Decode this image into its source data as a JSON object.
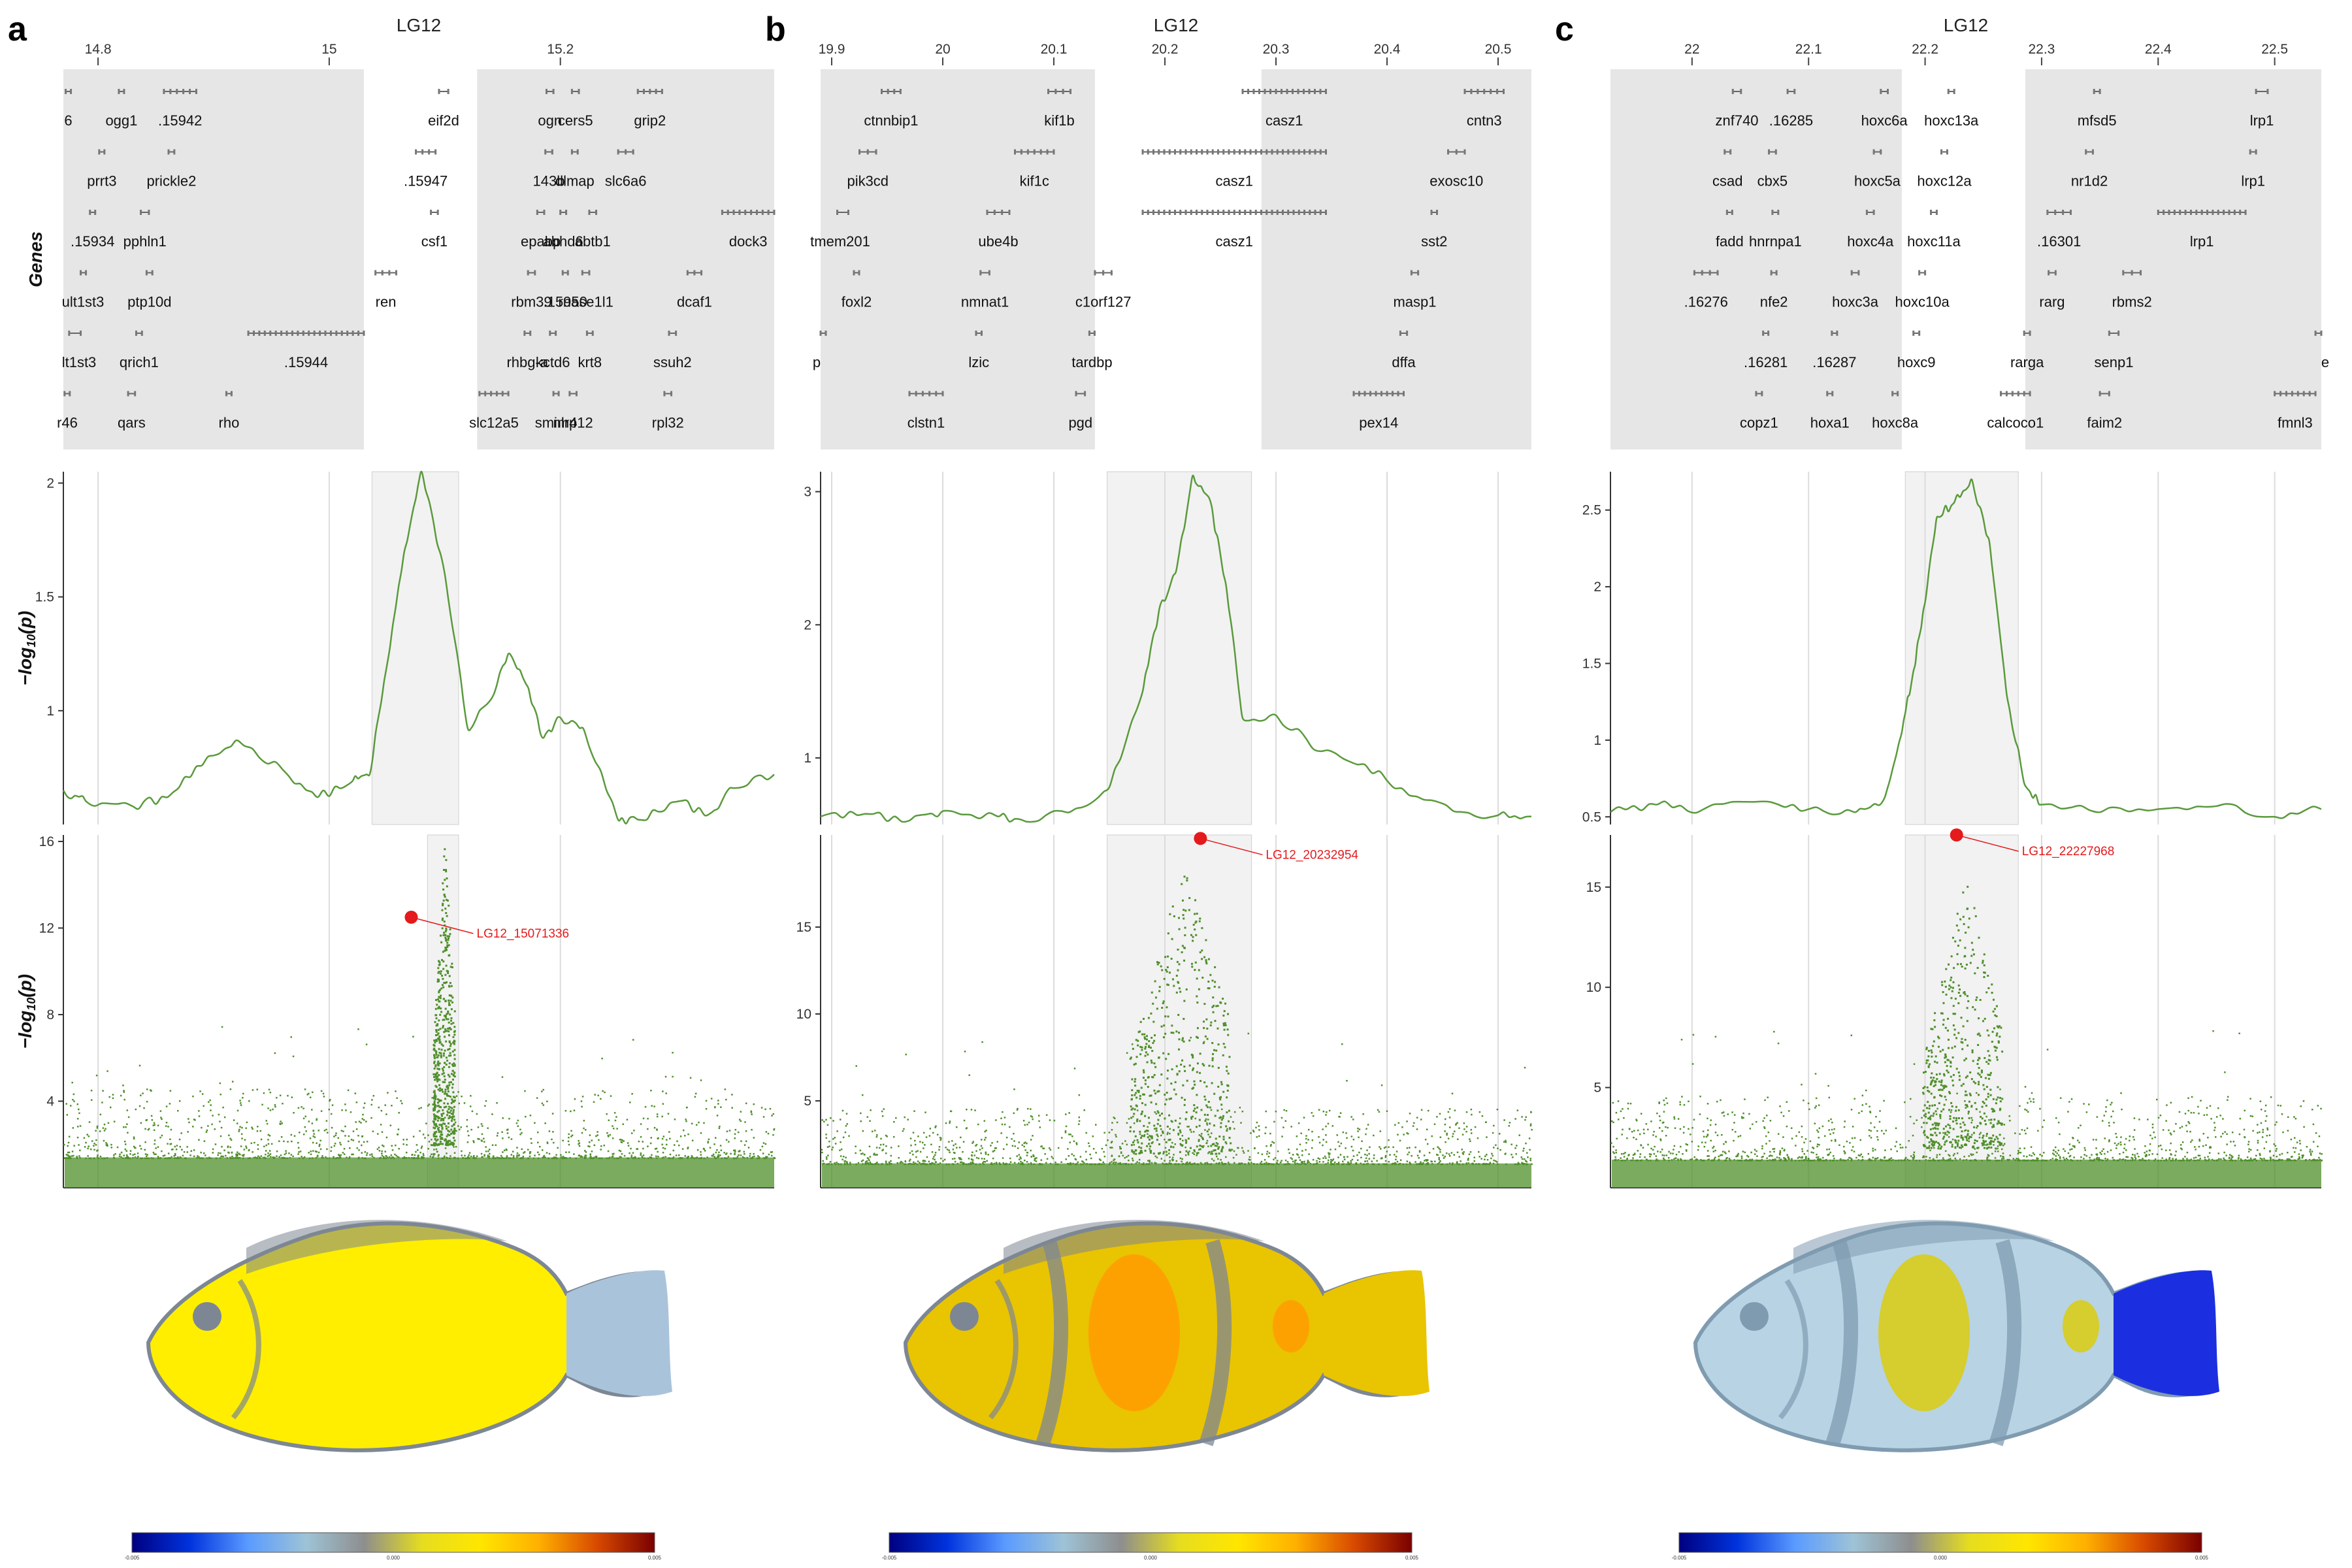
{
  "panels": [
    {
      "label": "a",
      "chrom": "LG12",
      "xlim": [
        14.77,
        15.385
      ],
      "xticks": [
        14.8,
        15.0,
        15.2
      ],
      "xtick_labels": [
        "14.8",
        "15",
        "15.2"
      ],
      "gene_ylabel": "Genes",
      "genes": [
        [
          [
            "6",
            14.772,
            14.772
          ],
          [
            "ogg1",
            14.818,
            14.822
          ],
          [
            ".15942",
            14.857,
            14.885
          ],
          [
            "eif2d",
            15.095,
            15.103
          ],
          [
            "ogn",
            15.188,
            15.194
          ],
          [
            "cers5",
            15.21,
            15.216
          ],
          [
            "grip2",
            15.267,
            15.288
          ]
        ],
        [
          [
            "prrt3",
            14.801,
            14.805
          ],
          [
            "prickle2",
            14.861,
            14.866
          ],
          [
            ".15947",
            15.075,
            15.092
          ],
          [
            "143b",
            15.187,
            15.193
          ],
          [
            "dlmap",
            15.21,
            15.215
          ],
          [
            "slc6a6",
            15.25,
            15.263
          ]
        ],
        [
          [
            ".15934",
            14.793,
            14.797
          ],
          [
            "pphln1",
            14.837,
            14.844
          ],
          [
            "csf1",
            15.088,
            15.094
          ],
          [
            "epabp",
            15.18,
            15.186
          ],
          [
            "abhd6",
            15.2,
            15.205
          ],
          [
            "abtb1",
            15.225,
            15.231
          ],
          [
            "dock3",
            15.34,
            15.385
          ]
        ],
        [
          [
            "ult1st3",
            14.785,
            14.789
          ],
          [
            "ptp10d",
            14.842,
            14.847
          ],
          [
            "ren",
            15.04,
            15.058
          ],
          [
            "rbm39",
            15.172,
            15.178
          ],
          [
            ".15950",
            15.202,
            15.206
          ],
          [
            "rnase1l1",
            15.219,
            15.225
          ],
          [
            "dcaf1",
            15.31,
            15.322
          ]
        ],
        [
          [
            "lt1st3",
            14.775,
            14.785
          ],
          [
            "qrich1",
            14.833,
            14.838
          ],
          [
            ".15944",
            14.93,
            15.03
          ],
          [
            "rhbg-a",
            15.169,
            15.174
          ],
          [
            "kctd6",
            15.191,
            15.196
          ],
          [
            "krt8",
            15.223,
            15.228
          ],
          [
            "ssuh2",
            15.294,
            15.3
          ]
        ],
        [
          [
            "r46",
            14.771,
            14.775
          ],
          [
            "qars",
            14.826,
            14.832
          ],
          [
            "rho",
            14.911,
            14.914
          ],
          [
            "slc12a5",
            15.13,
            15.155
          ],
          [
            "smim4",
            15.194,
            15.198
          ],
          [
            "nlrp12",
            15.208,
            15.214
          ],
          [
            "rpl32",
            15.29,
            15.296
          ]
        ]
      ],
      "gene_bands": [
        [
          14.77,
          15.03
        ],
        [
          15.128,
          15.385
        ]
      ],
      "line_ylabel": "-log10(p)",
      "line_yticks": [
        1.0,
        1.5,
        2.0
      ],
      "line_ylim": [
        0.5,
        2.05
      ],
      "line_knots": [
        [
          14.77,
          0.65
        ],
        [
          14.79,
          0.6
        ],
        [
          14.83,
          0.58
        ],
        [
          14.86,
          0.62
        ],
        [
          14.89,
          0.76
        ],
        [
          14.92,
          0.87
        ],
        [
          14.96,
          0.74
        ],
        [
          14.99,
          0.62
        ],
        [
          15.02,
          0.69
        ],
        [
          15.035,
          0.72
        ],
        [
          15.05,
          1.2
        ],
        [
          15.065,
          1.7
        ],
        [
          15.08,
          2.05
        ],
        [
          15.1,
          1.6
        ],
        [
          15.12,
          0.92
        ],
        [
          15.14,
          1.05
        ],
        [
          15.155,
          1.25
        ],
        [
          15.17,
          1.12
        ],
        [
          15.185,
          0.88
        ],
        [
          15.2,
          0.97
        ],
        [
          15.22,
          0.92
        ],
        [
          15.25,
          0.52
        ],
        [
          15.27,
          0.52
        ],
        [
          15.3,
          0.6
        ],
        [
          15.33,
          0.55
        ],
        [
          15.35,
          0.66
        ],
        [
          15.385,
          0.72
        ]
      ],
      "line_shade": [
        15.037,
        15.112
      ],
      "scatter_ylabel": "-log10(p)",
      "scatter_yticks": [
        4,
        8,
        12,
        16
      ],
      "scatter_ylim": [
        0,
        16.3
      ],
      "scatter_peak": [
        15.085,
        15.112
      ],
      "scatter_peak_max": 16.2,
      "top_snp": {
        "label": "LG12_15071336",
        "x": 15.071,
        "y": 12.5
      },
      "colorbar_ticks": [
        "-0.005",
        "0.000",
        "0.005"
      ]
    },
    {
      "label": "b",
      "chrom": "LG12",
      "xlim": [
        19.89,
        20.53
      ],
      "xticks": [
        19.9,
        20.0,
        20.1,
        20.2,
        20.3,
        20.4,
        20.5
      ],
      "xtick_labels": [
        "19.9",
        "20",
        "20.1",
        "20.2",
        "20.3",
        "20.4",
        "20.5"
      ],
      "gene_ylabel": "",
      "genes": [
        [
          [
            "ctnnbip1",
            19.945,
            19.962
          ],
          [
            "kif1b",
            20.095,
            20.115
          ],
          [
            "casz1",
            20.27,
            20.345
          ],
          [
            "cntn3",
            20.47,
            20.505
          ]
        ],
        [
          [
            "pik3cd",
            19.925,
            19.94
          ],
          [
            "kif1c",
            20.065,
            20.1
          ],
          [
            "casz1",
            20.18,
            20.345
          ],
          [
            "exosc10",
            20.455,
            20.47
          ]
        ],
        [
          [
            "tmem201",
            19.905,
            19.915
          ],
          [
            "ube4b",
            20.04,
            20.06
          ],
          [
            "casz1",
            20.18,
            20.345
          ],
          [
            "sst2",
            20.44,
            20.445
          ]
        ],
        [
          [
            "foxl2",
            19.92,
            19.924
          ],
          [
            "nmnat1",
            20.034,
            20.042
          ],
          [
            "c1orf127",
            20.137,
            20.152
          ],
          [
            "masp1",
            20.422,
            20.428
          ]
        ],
        [
          [
            "p",
            19.89,
            19.893
          ],
          [
            "lzic",
            20.03,
            20.035
          ],
          [
            "tardbp",
            20.132,
            20.136
          ],
          [
            "dffa",
            20.412,
            20.418
          ]
        ],
        [
          [
            "clstn1",
            19.97,
            20.0
          ],
          [
            "pgd",
            20.12,
            20.128
          ],
          [
            "pex14",
            20.37,
            20.415
          ]
        ]
      ],
      "gene_bands": [
        [
          19.89,
          20.137
        ],
        [
          20.287,
          20.53
        ]
      ],
      "line_ylabel": "",
      "line_yticks": [
        1,
        2,
        3
      ],
      "line_ylim": [
        0.5,
        3.15
      ],
      "line_knots": [
        [
          19.89,
          0.56
        ],
        [
          19.93,
          0.58
        ],
        [
          19.97,
          0.53
        ],
        [
          20.0,
          0.6
        ],
        [
          20.05,
          0.56
        ],
        [
          20.08,
          0.52
        ],
        [
          20.12,
          0.62
        ],
        [
          20.15,
          0.78
        ],
        [
          20.18,
          1.5
        ],
        [
          20.195,
          2.12
        ],
        [
          20.21,
          2.4
        ],
        [
          20.225,
          3.12
        ],
        [
          20.24,
          2.95
        ],
        [
          20.255,
          2.3
        ],
        [
          20.27,
          1.3
        ],
        [
          20.3,
          1.32
        ],
        [
          20.34,
          1.05
        ],
        [
          20.38,
          0.95
        ],
        [
          20.42,
          0.72
        ],
        [
          20.46,
          0.6
        ],
        [
          20.5,
          0.57
        ],
        [
          20.53,
          0.56
        ]
      ],
      "line_shade": [
        20.148,
        20.278
      ],
      "scatter_ylabel": "",
      "scatter_yticks": [
        5,
        10,
        15
      ],
      "scatter_ylim": [
        0,
        20.3
      ],
      "scatter_peak": [
        20.148,
        20.278
      ],
      "scatter_peak_max": 19.0,
      "top_snp": {
        "label": "LG12_20232954",
        "x": 20.232,
        "y": 20.1
      },
      "colorbar_ticks": [
        "-0.005",
        "0.000",
        "0.005"
      ]
    },
    {
      "label": "c",
      "chrom": "LG12",
      "xlim": [
        21.93,
        22.54
      ],
      "xticks": [
        22.0,
        22.1,
        22.2,
        22.3,
        22.4,
        22.5
      ],
      "xtick_labels": [
        "22",
        "22.1",
        "22.2",
        "22.3",
        "22.4",
        "22.5"
      ],
      "gene_ylabel": "",
      "genes": [
        [
          [
            "znf740",
            22.035,
            22.042
          ],
          [
            ".16285",
            22.082,
            22.088
          ],
          [
            "hoxc6a",
            22.162,
            22.168
          ],
          [
            "hoxc13a",
            22.22,
            22.225
          ],
          [
            "mfsd5",
            22.345,
            22.35
          ],
          [
            "lrp1",
            22.484,
            22.494
          ]
        ],
        [
          [
            "csad",
            22.028,
            22.033
          ],
          [
            "cbx5",
            22.066,
            22.072
          ],
          [
            "hoxc5a",
            22.156,
            22.162
          ],
          [
            "hoxc12a",
            22.214,
            22.219
          ],
          [
            "nr1d2",
            22.338,
            22.344
          ],
          [
            "lrp1",
            22.479,
            22.484
          ]
        ],
        [
          [
            "fadd",
            22.03,
            22.034
          ],
          [
            "hnrnpa1",
            22.069,
            22.074
          ],
          [
            "hoxc4a",
            22.15,
            22.156
          ],
          [
            "hoxc11a",
            22.205,
            22.21
          ],
          [
            ".16301",
            22.305,
            22.325
          ],
          [
            "lrp1",
            22.4,
            22.475
          ]
        ],
        [
          [
            ".16276",
            22.002,
            22.022
          ],
          [
            "nfe2",
            22.068,
            22.072
          ],
          [
            "hoxc3a",
            22.137,
            22.143
          ],
          [
            "hoxc10a",
            22.195,
            22.2
          ],
          [
            "rarg",
            22.306,
            22.312
          ],
          [
            "rbms2",
            22.37,
            22.385
          ]
        ],
        [
          [
            ".16281",
            22.061,
            22.064
          ],
          [
            ".16287",
            22.12,
            22.123
          ],
          [
            "hoxc9",
            22.19,
            22.195
          ],
          [
            "rarga",
            22.285,
            22.29
          ],
          [
            "senp1",
            22.358,
            22.366
          ],
          [
            "e",
            22.535,
            22.54
          ]
        ],
        [
          [
            "copz1",
            22.055,
            22.06
          ],
          [
            "hoxa1",
            22.116,
            22.12
          ],
          [
            "hoxc8a",
            22.172,
            22.176
          ],
          [
            "calcoco1",
            22.265,
            22.29
          ],
          [
            "faim2",
            22.35,
            22.358
          ],
          [
            "fmnl3",
            22.5,
            22.535
          ]
        ]
      ],
      "gene_bands": [
        [
          21.93,
          22.18
        ],
        [
          22.286,
          22.54
        ]
      ],
      "line_ylabel": "",
      "line_yticks": [
        0.5,
        1.0,
        1.5,
        2.0,
        2.5
      ],
      "line_ylim": [
        0.45,
        2.75
      ],
      "line_knots": [
        [
          21.93,
          0.53
        ],
        [
          21.97,
          0.58
        ],
        [
          22.01,
          0.55
        ],
        [
          22.06,
          0.6
        ],
        [
          22.1,
          0.55
        ],
        [
          22.14,
          0.53
        ],
        [
          22.165,
          0.62
        ],
        [
          22.18,
          1.05
        ],
        [
          22.19,
          1.45
        ],
        [
          22.2,
          1.9
        ],
        [
          22.21,
          2.45
        ],
        [
          22.225,
          2.55
        ],
        [
          22.24,
          2.7
        ],
        [
          22.255,
          2.3
        ],
        [
          22.27,
          1.3
        ],
        [
          22.285,
          0.72
        ],
        [
          22.3,
          0.58
        ],
        [
          22.35,
          0.53
        ],
        [
          22.4,
          0.55
        ],
        [
          22.45,
          0.57
        ],
        [
          22.5,
          0.5
        ],
        [
          22.54,
          0.55
        ]
      ],
      "line_shade": [
        22.183,
        22.28
      ],
      "scatter_ylabel": "",
      "scatter_yticks": [
        5,
        10,
        15
      ],
      "scatter_ylim": [
        0,
        17.6
      ],
      "scatter_peak": [
        22.183,
        22.28
      ],
      "scatter_peak_max": 15.8,
      "top_snp": {
        "label": "LG12_22227968",
        "x": 22.227,
        "y": 17.6
      },
      "colorbar_ticks": [
        "-0.005",
        "0.000",
        "0.005"
      ]
    }
  ],
  "colors": {
    "line": "#5a9a3c",
    "points": "#4f8f2a",
    "top_snp": "#e41a1c",
    "panel_bg": "#e6e6e6",
    "shade": "#f2f2f2",
    "grid": "#dcdcdc"
  },
  "colorbar_colors": [
    "#000080",
    "#0033dd",
    "#5a9bff",
    "#9ec3d6",
    "#8e8e8e",
    "#e6dd20",
    "#ffe600",
    "#ffb000",
    "#d84a00",
    "#7a0000"
  ],
  "fish_maps": [
    {
      "base": "#ffee00",
      "dark": "#7d8794",
      "fin": "#a9c4da",
      "stripes": []
    },
    {
      "base": "#e9c400",
      "dark": "#7d8794",
      "fin": "#e9c400",
      "stripes": [
        "#ff9d00"
      ]
    },
    {
      "base": "#b8d3e3",
      "dark": "#7f9bb0",
      "fin": "#1b2fe0",
      "stripes": [
        "#d9cc1a"
      ]
    }
  ]
}
